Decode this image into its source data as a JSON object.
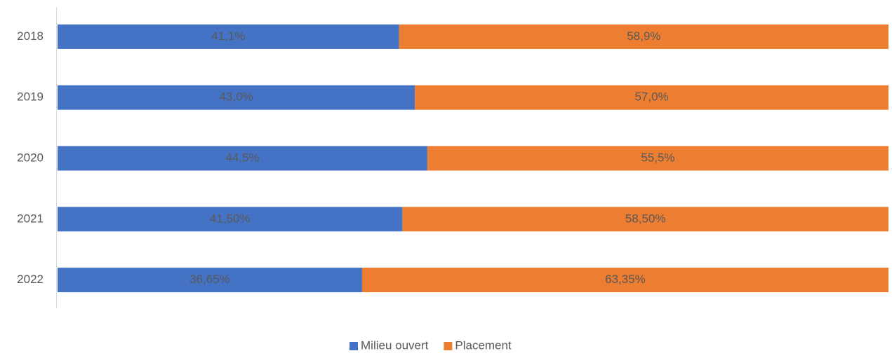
{
  "chart_data": {
    "type": "stacked-barh",
    "categories": [
      "2018",
      "2019",
      "2020",
      "2021",
      "2022"
    ],
    "series": [
      {
        "name": "Milieu ouvert",
        "color": "#4472c4",
        "values": [
          41.1,
          43.0,
          44.5,
          41.5,
          36.65
        ],
        "value_labels": [
          "41,1%",
          "43,0%",
          "44,5%",
          "41,50%",
          "36,65%"
        ]
      },
      {
        "name": "Placement",
        "color": "#ed7d31",
        "values": [
          58.9,
          57.0,
          55.5,
          58.5,
          63.35
        ],
        "value_labels": [
          "58,9%",
          "57,0%",
          "55,5%",
          "58,50%",
          "63,35%"
        ]
      }
    ],
    "xlim": [
      0,
      100
    ],
    "legend": "bottom"
  }
}
